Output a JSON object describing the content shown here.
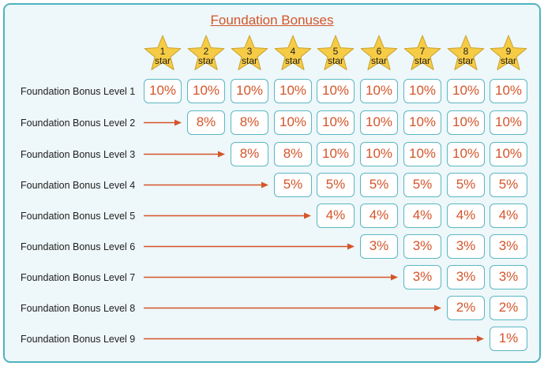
{
  "title": "Foundation Bonuses",
  "colors": {
    "accent": "#d4552a",
    "border": "#4fb3c3",
    "star_fill": "#f6cb45",
    "background": "#eef7f9"
  },
  "star_icon": "star-icon",
  "stars": [
    {
      "number": "1",
      "label": "star"
    },
    {
      "number": "2",
      "label": "star"
    },
    {
      "number": "3",
      "label": "star"
    },
    {
      "number": "4",
      "label": "star"
    },
    {
      "number": "5",
      "label": "star"
    },
    {
      "number": "6",
      "label": "star"
    },
    {
      "number": "7",
      "label": "star"
    },
    {
      "number": "8",
      "label": "star"
    },
    {
      "number": "9",
      "label": "star"
    }
  ],
  "rows": [
    {
      "label": "Foundation Bonus Level 1",
      "start_star": 1,
      "values": [
        "10%",
        "10%",
        "10%",
        "10%",
        "10%",
        "10%",
        "10%",
        "10%",
        "10%"
      ]
    },
    {
      "label": "Foundation Bonus Level 2",
      "start_star": 2,
      "values": [
        "8%",
        "8%",
        "10%",
        "10%",
        "10%",
        "10%",
        "10%",
        "10%"
      ]
    },
    {
      "label": "Foundation Bonus Level 3",
      "start_star": 3,
      "values": [
        "8%",
        "8%",
        "10%",
        "10%",
        "10%",
        "10%",
        "10%"
      ]
    },
    {
      "label": "Foundation Bonus Level 4",
      "start_star": 4,
      "values": [
        "5%",
        "5%",
        "5%",
        "5%",
        "5%",
        "5%"
      ]
    },
    {
      "label": "Foundation Bonus Level 5",
      "start_star": 5,
      "values": [
        "4%",
        "4%",
        "4%",
        "4%",
        "4%"
      ]
    },
    {
      "label": "Foundation Bonus Level 6",
      "start_star": 6,
      "values": [
        "3%",
        "3%",
        "3%",
        "3%"
      ]
    },
    {
      "label": "Foundation Bonus Level 7",
      "start_star": 7,
      "values": [
        "3%",
        "3%",
        "3%"
      ]
    },
    {
      "label": "Foundation Bonus Level 8",
      "start_star": 8,
      "values": [
        "2%",
        "2%"
      ]
    },
    {
      "label": "Foundation Bonus Level 9",
      "start_star": 9,
      "values": [
        "1%"
      ]
    }
  ]
}
